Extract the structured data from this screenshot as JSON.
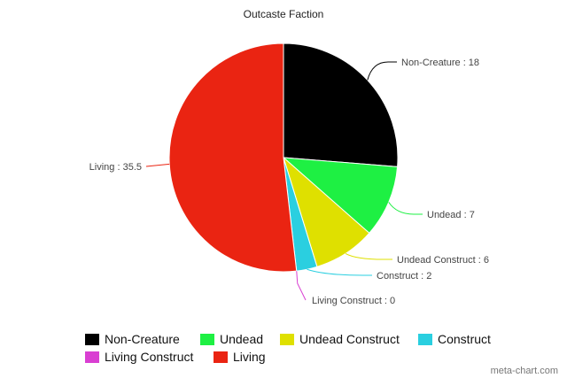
{
  "chart_data": {
    "type": "pie",
    "title": "Outcaste Faction",
    "slices": [
      {
        "label": "Non-Creature",
        "value": 18,
        "color": "#000000",
        "data_label": "Non-Creature : 18"
      },
      {
        "label": "Undead",
        "value": 7,
        "color": "#1ef043",
        "data_label": "Undead : 7"
      },
      {
        "label": "Undead Construct",
        "value": 6,
        "color": "#dfe000",
        "data_label": "Undead Construct : 6"
      },
      {
        "label": "Construct",
        "value": 2,
        "color": "#2acfe0",
        "data_label": "Construct : 2"
      },
      {
        "label": "Living Construct",
        "value": 0,
        "color": "#d93fd2",
        "data_label": "Living Construct : 0"
      },
      {
        "label": "Living",
        "value": 35.5,
        "color": "#ea2412",
        "data_label": "Living : 35.5"
      }
    ],
    "legend_position": "bottom"
  },
  "credit": "meta-chart.com"
}
